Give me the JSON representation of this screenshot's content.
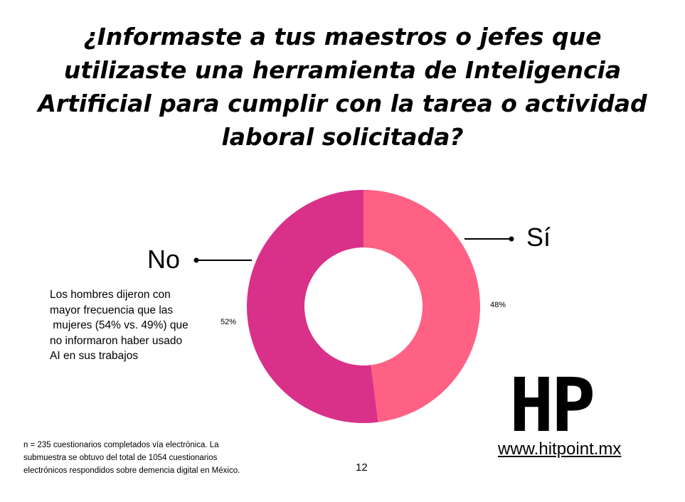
{
  "title_lines": [
    "¿Informaste a tus maestros o jefes que",
    "utilizaste una herramienta de Inteligencia",
    "Artificial para cumplir con la tarea o actividad",
    "laboral solicitada?"
  ],
  "chart_data": {
    "type": "pie",
    "donut": true,
    "categories": [
      "Sí",
      "No"
    ],
    "values": [
      48,
      52
    ],
    "value_labels": [
      "48%",
      "52%"
    ],
    "colors": [
      "#ff6185",
      "#d93189"
    ],
    "callout_labels": [
      "Sí",
      "No"
    ]
  },
  "note_lines": [
    "Los hombres dijeron con",
    "mayor frecuencia que las",
    " mujeres (54% vs. 49%) que",
    "no informaron haber usado",
    "AI en sus trabajos"
  ],
  "footnote_lines": [
    "n = 235 cuestionarios completados vía electrónica. La",
    "submuestra se obtuvo del total de 1054 cuestionarios",
    "electrónicos respondidos sobre demencia digital en México."
  ],
  "page_number": "12",
  "logo_text": "HP",
  "website": "www.hitpoint.mx"
}
